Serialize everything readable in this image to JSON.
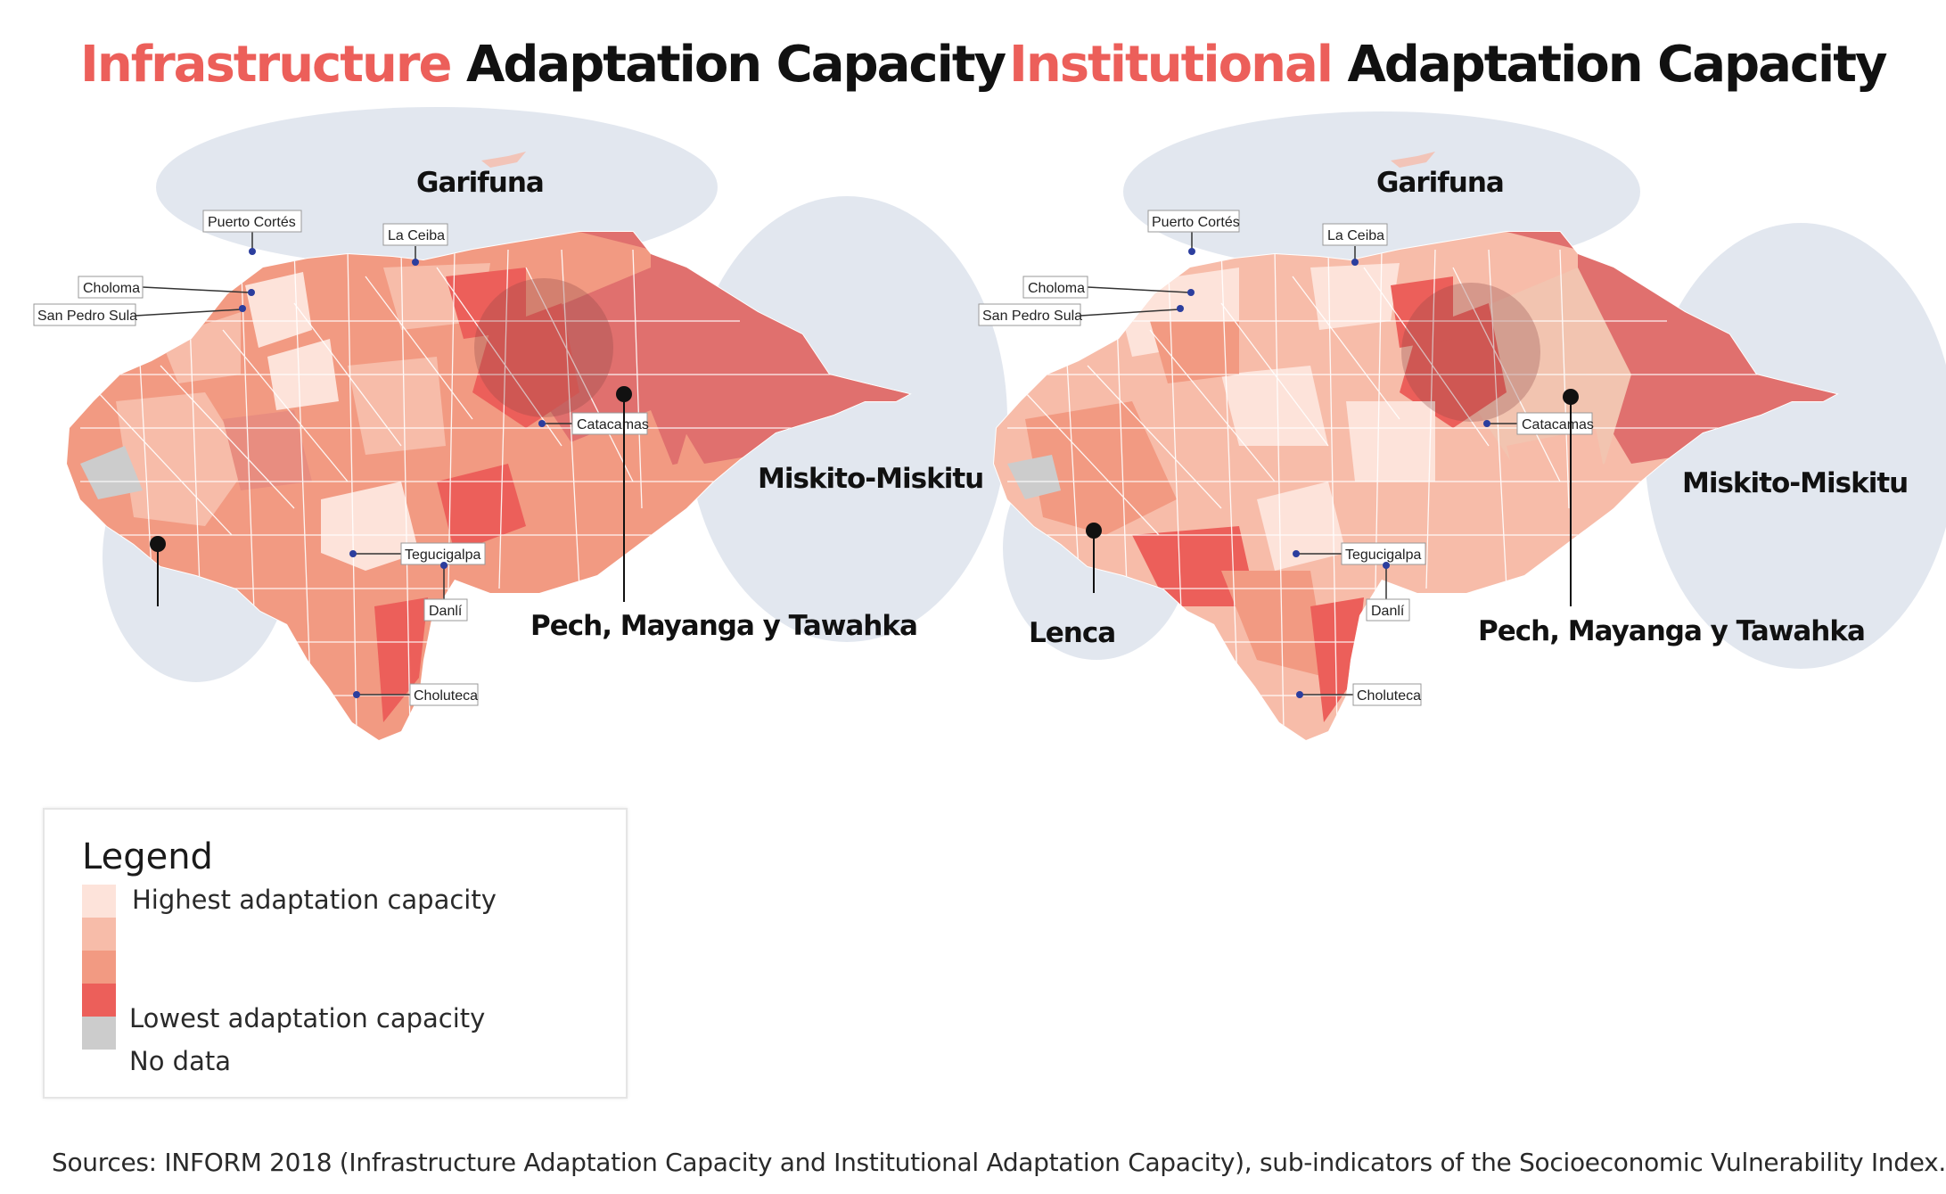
{
  "titles": {
    "left": {
      "highlight": "Infrastructure",
      "rest": "Adaptation Capacity"
    },
    "right": {
      "highlight": "Institutional",
      "rest": "Adaptation Capacity"
    }
  },
  "maps": {
    "left": {
      "cities": {
        "puerto_cortes": "Puerto Cortés",
        "la_ceiba": "La Ceiba",
        "choloma": "Choloma",
        "san_pedro_sula": "San Pedro Sula",
        "catacamas": "Catacamas",
        "tegucigalpa": "Tegucigalpa",
        "danli": "Danlí",
        "choluteca": "Choluteca"
      },
      "groups": {
        "garifuna": "Garifuna",
        "miskito": "Miskito-Miskitu",
        "pech": "Pech, Mayanga y Tawahka"
      }
    },
    "right": {
      "cities": {
        "puerto_cortes": "Puerto Cortés",
        "la_ceiba": "La Ceiba",
        "choloma": "Choloma",
        "san_pedro_sula": "San Pedro Sula",
        "catacamas": "Catacamas",
        "tegucigalpa": "Tegucigalpa",
        "danli": "Danlí",
        "choluteca": "Choluteca"
      },
      "groups": {
        "garifuna": "Garifuna",
        "miskito": "Miskito-Miskitu",
        "pech": "Pech, Mayanga y Tawahka",
        "lenca": "Lenca"
      }
    }
  },
  "legend": {
    "title": "Legend",
    "items": [
      {
        "label": "Highest adaptation capacity",
        "color": "#fde3da"
      },
      {
        "label": "",
        "color": "#f7bca9"
      },
      {
        "label": "",
        "color": "#f29a82"
      },
      {
        "label": "Lowest adaptation capacity",
        "color": "#ec5f5a"
      },
      {
        "label": "No data",
        "color": "#cccccc"
      }
    ]
  },
  "colors": {
    "accent": "#ec5f5a",
    "halo": "#dde3ec"
  },
  "sources": "Sources: INFORM 2018 (Infrastructure Adaptation Capacity and Institutional Adaptation Capacity), sub-indicators of the Socioeconomic Vulnerability Index."
}
